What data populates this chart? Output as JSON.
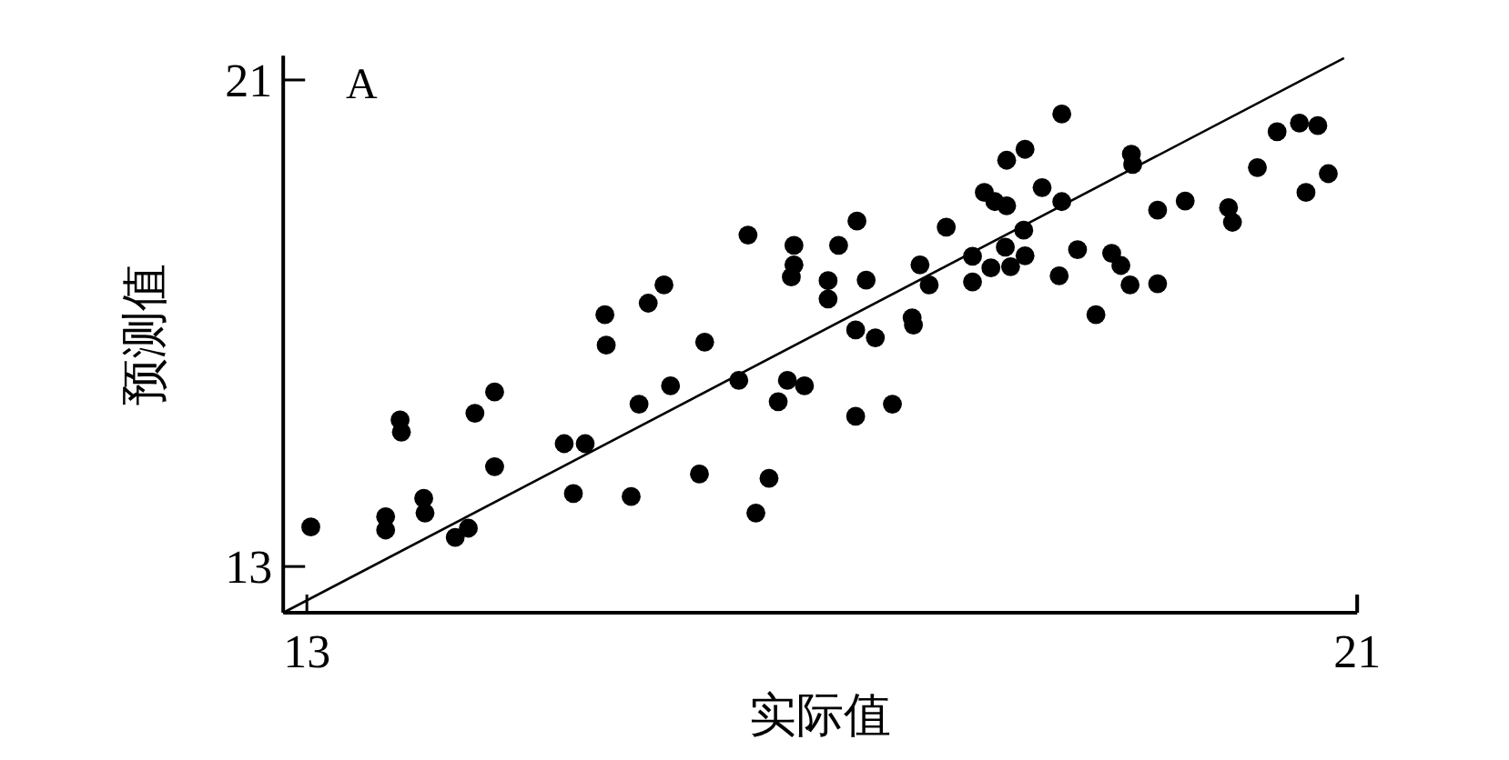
{
  "chart_data": {
    "type": "scatter",
    "xlabel": "实际值",
    "ylabel": "预测值",
    "annotations": [
      "A"
    ],
    "xlim": [
      12.82,
      21
    ],
    "ylim": [
      12.24,
      21.4
    ],
    "xticks": [
      13,
      21
    ],
    "yticks": [
      13,
      21
    ],
    "grid": false,
    "series": [
      {
        "marker": "circle",
        "color": "#000000",
        "x": [
          13.03,
          13.6,
          13.6,
          13.71,
          13.72,
          13.89,
          13.9,
          14.13,
          14.23,
          14.28,
          14.43,
          14.43,
          14.96,
          15.12,
          15.03,
          15.27,
          15.28,
          15.47,
          15.53,
          15.6,
          15.72,
          15.77,
          16.03,
          15.99,
          16.29,
          16.36,
          16.42,
          16.52,
          16.59,
          16.66,
          16.79,
          16.71,
          16.71,
          16.69,
          17.05,
          17.19,
          16.97,
          16.97,
          17.26,
          17.18,
          17.33,
          17.61,
          17.62,
          17.18,
          17.46,
          17.67,
          17.74,
          17.87,
          18.07,
          18.07,
          18.16,
          18.24,
          18.33,
          18.21,
          18.32,
          18.36,
          18.46,
          18.47,
          18.33,
          18.47,
          18.6,
          18.75,
          18.75,
          18.73,
          18.87,
          19.01,
          19.13,
          19.2,
          19.27,
          19.48,
          19.28,
          19.29,
          19.48,
          19.69,
          20.02,
          20.05,
          20.24,
          20.39,
          20.56,
          20.7,
          20.61,
          20.78
        ],
        "values": [
          13.65,
          13.82,
          13.6,
          15.41,
          15.21,
          14.12,
          13.88,
          13.48,
          13.63,
          15.52,
          15.87,
          14.64,
          15.02,
          15.02,
          14.2,
          17.14,
          16.64,
          14.15,
          15.67,
          17.33,
          17.63,
          15.97,
          16.69,
          14.52,
          16.06,
          18.45,
          13.88,
          14.45,
          15.71,
          16.06,
          15.97,
          18.28,
          17.96,
          17.76,
          18.28,
          18.68,
          17.7,
          17.4,
          17.71,
          16.89,
          16.76,
          17.09,
          16.97,
          15.47,
          15.67,
          17.96,
          17.63,
          18.58,
          18.1,
          17.68,
          19.15,
          19.0,
          18.93,
          17.91,
          18.25,
          17.93,
          18.53,
          18.11,
          19.68,
          19.86,
          19.23,
          20.44,
          19.0,
          17.78,
          18.21,
          17.14,
          18.15,
          17.95,
          17.63,
          17.65,
          19.78,
          19.61,
          18.86,
          19.01,
          18.9,
          18.66,
          19.56,
          20.15,
          20.29,
          20.25,
          19.15,
          19.46
        ]
      },
      {
        "type": "line",
        "marker": "none",
        "color": "#000000",
        "line_style": "solid",
        "x": [
          12.82,
          20.9
        ],
        "values": [
          12.24,
          21.36
        ]
      }
    ]
  }
}
